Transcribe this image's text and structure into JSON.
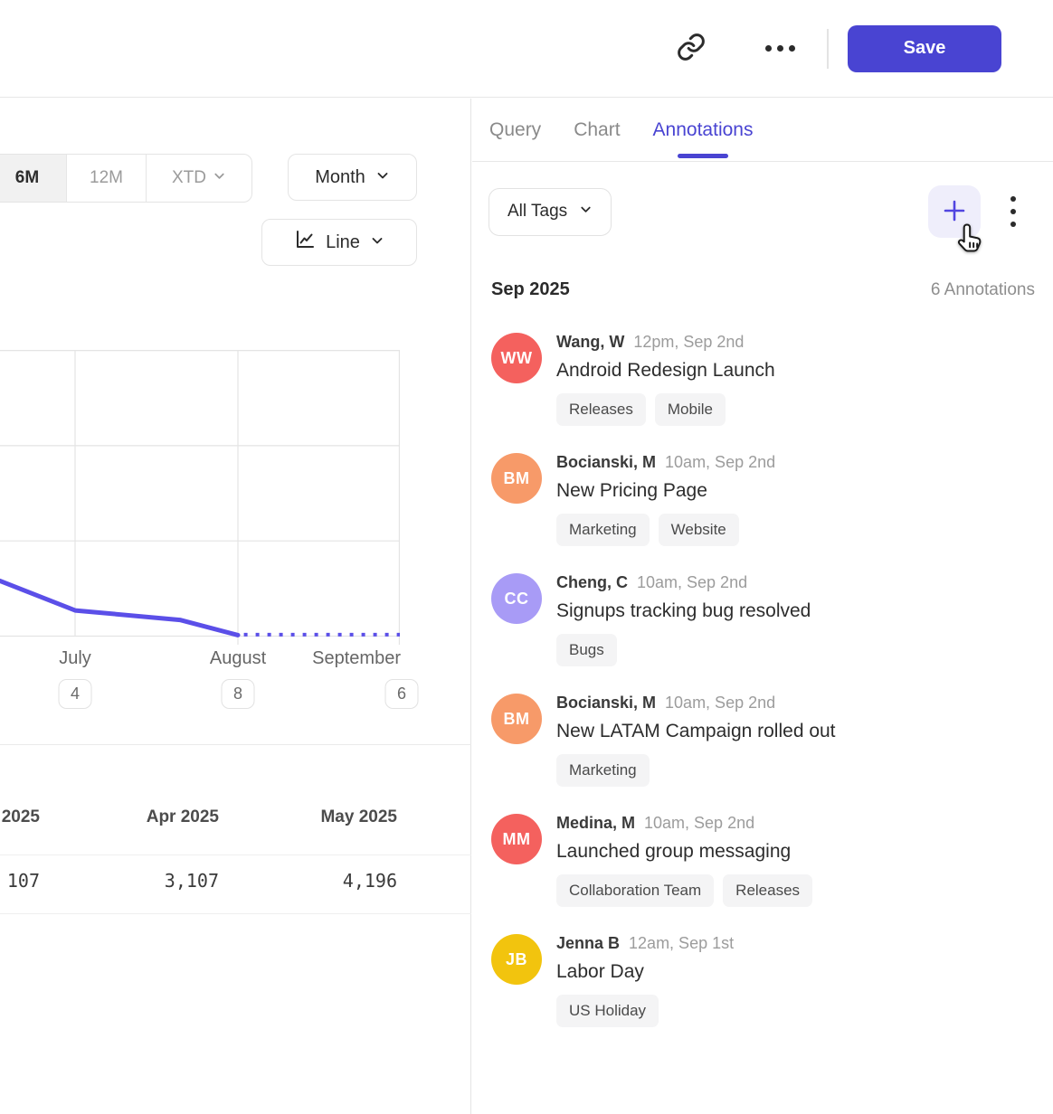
{
  "colors": {
    "accent": "#4944d2",
    "line_series": "#5b4fe8",
    "add_button_bg": "#efeefb",
    "tag_chip_bg": "#f4f4f5"
  },
  "icons": {
    "copy_link": "chain-link",
    "more_actions": "horizontal-ellipsis",
    "overflow_menu": "vertical-kebab",
    "add": "plus",
    "dropdowns": "chevron-down",
    "chart_type": "line-chart",
    "pointer": "pointing-hand-cursor"
  },
  "header": {
    "save_label": "Save"
  },
  "tabs": [
    {
      "label": "Query",
      "active": false
    },
    {
      "label": "Chart",
      "active": false
    },
    {
      "label": "Annotations",
      "active": true
    }
  ],
  "chart_panel": {
    "range_options": [
      "6M",
      "12M",
      "XTD"
    ],
    "range_selected": "6M",
    "granularity": "Month",
    "chart_type": "Line",
    "x_labels": [
      "July",
      "August",
      "September"
    ],
    "x_annotation_counts": [
      "4",
      "8",
      "6"
    ],
    "table": {
      "headers": [
        "2025",
        "Apr 2025",
        "May 2025"
      ],
      "values": [
        "107",
        "3,107",
        "4,196"
      ]
    }
  },
  "chart_data": {
    "type": "line",
    "title": "",
    "xlabel": "",
    "ylabel": "",
    "x_tick_labels": [
      "July",
      "August",
      "September"
    ],
    "x_tick_annotation_counts": [
      4,
      8,
      6
    ],
    "y_axis_labels_visible": false,
    "grid": true,
    "note": "Left portion of chart and first table column are cropped by the viewport; y values are in gridline units from the bottom axis (3 units = full plot height).",
    "geometry": {
      "x_frac_july": 0.188,
      "x_frac_august": 0.595,
      "x_frac_right_edge": 1.0
    },
    "series": [
      {
        "name": "actual",
        "style": "solid",
        "color": "#5b4fe8",
        "points": [
          {
            "x": 0.0,
            "y": 0.58
          },
          {
            "x": 0.188,
            "y": 0.27
          },
          {
            "x": 0.45,
            "y": 0.17
          },
          {
            "x": 0.595,
            "y": 0.01
          }
        ]
      },
      {
        "name": "projection",
        "style": "dotted",
        "color": "#5b4fe8",
        "points": [
          {
            "x": 0.61,
            "y": 0.015
          },
          {
            "x": 1.0,
            "y": 0.015
          }
        ]
      }
    ],
    "table_values": {
      "2025": "107",
      "Apr 2025": "3,107",
      "May 2025": "4,196"
    }
  },
  "annotations_panel": {
    "filter_label": "All Tags",
    "group_title": "Sep 2025",
    "group_count": "6 Annotations",
    "items": [
      {
        "initials": "WW",
        "avatar_color": "#f4615e",
        "name": "Wang, W",
        "time": "12pm, Sep 2nd",
        "title": "Android Redesign Launch",
        "tags": [
          "Releases",
          "Mobile"
        ]
      },
      {
        "initials": "BM",
        "avatar_color": "#f79a69",
        "name": "Bocianski, M",
        "time": "10am, Sep 2nd",
        "title": "New Pricing Page",
        "tags": [
          "Marketing",
          "Website"
        ]
      },
      {
        "initials": "CC",
        "avatar_color": "#a89bf6",
        "name": "Cheng, C",
        "time": "10am, Sep 2nd",
        "title": "Signups tracking bug resolved",
        "tags": [
          "Bugs"
        ]
      },
      {
        "initials": "BM",
        "avatar_color": "#f79a69",
        "name": "Bocianski, M",
        "time": "10am, Sep 2nd",
        "title": "New LATAM Campaign rolled out",
        "tags": [
          "Marketing"
        ]
      },
      {
        "initials": "MM",
        "avatar_color": "#f4615e",
        "name": "Medina, M",
        "time": "10am, Sep 2nd",
        "title": "Launched group messaging",
        "tags": [
          "Collaboration Team",
          "Releases"
        ]
      },
      {
        "initials": "JB",
        "avatar_color": "#f2c40e",
        "name": "Jenna B",
        "time": "12am, Sep 1st",
        "title": "Labor Day",
        "tags": [
          "US Holiday"
        ]
      }
    ]
  }
}
